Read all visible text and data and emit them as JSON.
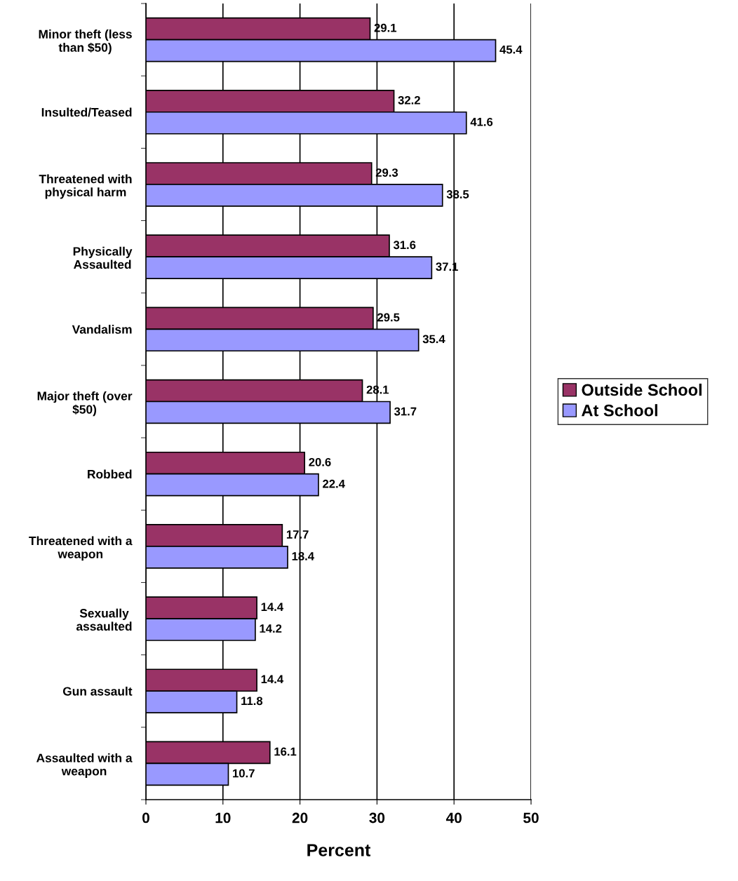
{
  "chart_data": {
    "type": "bar",
    "orientation": "horizontal",
    "xlabel": "Percent",
    "categories": [
      "Minor theft (less\nthan $50)",
      "Insulted/Teased",
      "Threatened with\nphysical harm",
      "Physically\nAssaulted",
      "Vandalism",
      "Major theft (over\n$50)",
      "Robbed",
      "Threatened with a\nweapon",
      "Sexually\nassaulted",
      "Gun assault",
      "Assaulted with a\nweapon"
    ],
    "series": [
      {
        "name": "Outside School",
        "color": "#993366",
        "values": [
          29.1,
          32.2,
          29.3,
          31.6,
          29.5,
          28.1,
          20.6,
          17.7,
          14.4,
          14.4,
          16.1
        ]
      },
      {
        "name": "At School",
        "color": "#9999ff",
        "values": [
          45.4,
          41.6,
          38.5,
          37.1,
          35.4,
          31.7,
          22.4,
          18.4,
          14.2,
          11.8,
          10.7
        ]
      }
    ],
    "xlim": [
      0,
      50
    ],
    "xticks": [
      0,
      10,
      20,
      30,
      40,
      50
    ],
    "grid": "x",
    "legend": "right",
    "data_labels": true
  }
}
